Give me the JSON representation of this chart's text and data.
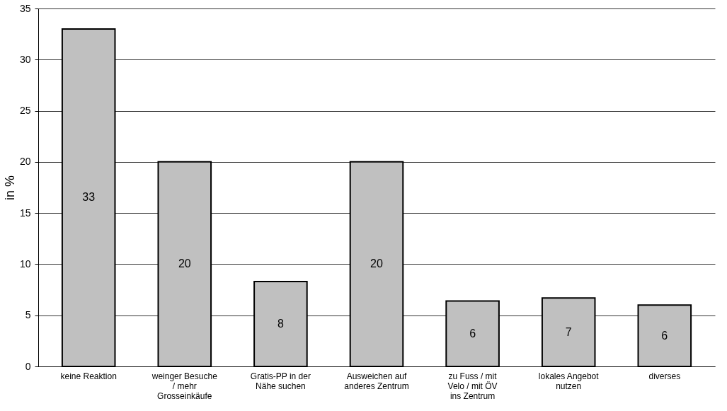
{
  "chart_data": {
    "type": "bar",
    "ylabel": "in %",
    "categories": [
      "keine Reaktion",
      "weinger Besuche / mehr Grosseinkäufe",
      "Gratis-PP in der Nähe suchen",
      "Ausweichen auf anderes Zentrum",
      "zu Fuss / mit Velo / mit ÖV ins Zentrum",
      "lokales Angebot nutzen",
      "diverses"
    ],
    "values": [
      33,
      20,
      8.3,
      20,
      6.4,
      6.7,
      6.0
    ],
    "value_labels": [
      "33",
      "20",
      "8",
      "20",
      "6",
      "7",
      "6"
    ],
    "color": "#c0c0c0",
    "ylim": [
      0,
      35
    ],
    "yticks": [
      0,
      5,
      10,
      15,
      20,
      25,
      30,
      35
    ],
    "grid": "y"
  }
}
